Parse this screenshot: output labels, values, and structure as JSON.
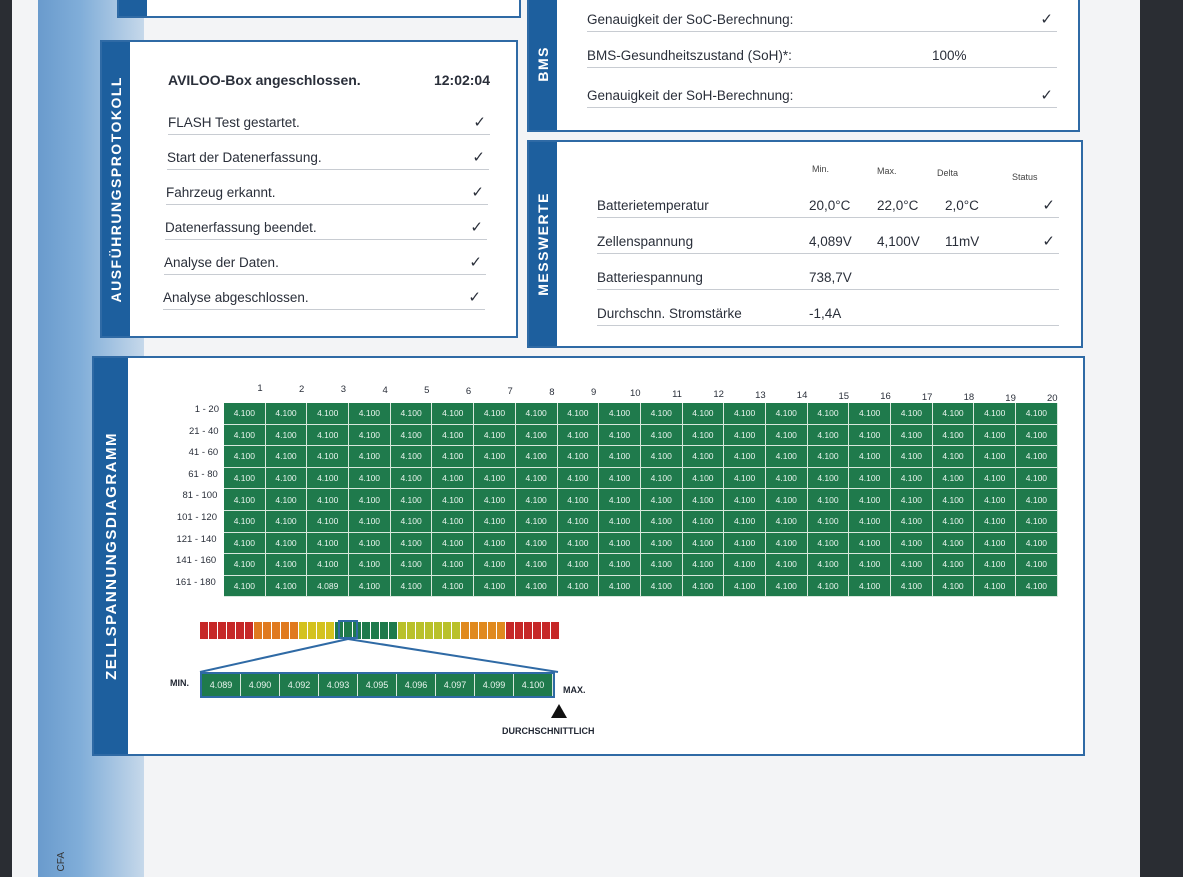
{
  "protocol": {
    "title": "AUSFÜHRUNGSPROTOKOLL",
    "header_label": "AVILOO-Box angeschlossen.",
    "header_time": "12:02:04",
    "items": [
      {
        "label": "FLASH Test gestartet.",
        "check": "✓"
      },
      {
        "label": "Start der Datenerfassung.",
        "check": "✓"
      },
      {
        "label": "Fahrzeug erkannt.",
        "check": "✓"
      },
      {
        "label": "Datenerfassung beendet.",
        "check": "✓"
      },
      {
        "label": "Analyse der Daten.",
        "check": "✓"
      },
      {
        "label": "Analyse abgeschlossen.",
        "check": "✓"
      }
    ]
  },
  "bms": {
    "title": "BMS",
    "rows": [
      {
        "label": "Genauigkeit der SoC-Berechnung:",
        "value": "",
        "check": "✓"
      },
      {
        "label": "BMS-Gesundheitszustand (SoH)*:",
        "value": "100%",
        "check": ""
      },
      {
        "label": "Genauigkeit der SoH-Berechnung:",
        "value": "",
        "check": "✓"
      }
    ]
  },
  "messwerte": {
    "title": "MESSWERTE",
    "headers": {
      "min": "Min.",
      "max": "Max.",
      "delta": "Delta",
      "status": "Status"
    },
    "rows": [
      {
        "label": "Batterietemperatur",
        "min": "20,0°C",
        "max": "22,0°C",
        "delta": "2,0°C",
        "status": "✓"
      },
      {
        "label": "Zellenspannung",
        "min": "4,089V",
        "max": "4,100V",
        "delta": "11mV",
        "status": "✓"
      },
      {
        "label": "Batteriespannung",
        "min": "738,7V",
        "max": "",
        "delta": "",
        "status": ""
      },
      {
        "label": "Durchschn. Stromstärke",
        "min": "-1,4A",
        "max": "",
        "delta": "",
        "status": ""
      }
    ]
  },
  "diagram": {
    "title": "ZELLSPANNUNGSDIAGRAMM",
    "columns": [
      "1",
      "2",
      "3",
      "4",
      "5",
      "6",
      "7",
      "8",
      "9",
      "10",
      "11",
      "12",
      "13",
      "14",
      "15",
      "16",
      "17",
      "18",
      "19",
      "20"
    ],
    "row_labels": [
      "1 - 20",
      "21 - 40",
      "41 - 60",
      "61 - 80",
      "81 - 100",
      "101 - 120",
      "121 - 140",
      "141 - 160",
      "161 - 180"
    ],
    "default_value": "4.100",
    "overrides": [
      {
        "row": 8,
        "col": 2,
        "value": "4.089"
      }
    ],
    "colors": {
      "cell": "#1f7a4c",
      "accent": "#1d5f9e"
    },
    "scale_min_label": "MIN.",
    "scale_max_label": "MAX.",
    "scale_values": [
      "4.089",
      "4.090",
      "4.092",
      "4.093",
      "4.095",
      "4.096",
      "4.097",
      "4.099",
      "4.100"
    ],
    "average_label": "DURCHSCHNITTLICH"
  },
  "footer": {
    "code": "CFA"
  }
}
